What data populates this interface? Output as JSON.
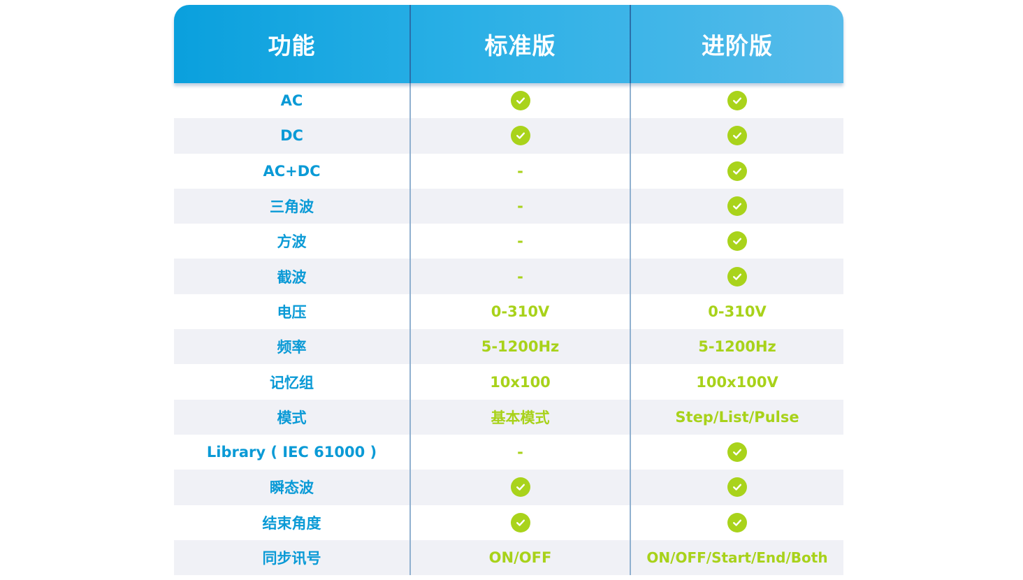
{
  "header": {
    "feature_label": "功能",
    "standard_label": "标准版",
    "advanced_label": "进阶版"
  },
  "rows": [
    {
      "feature": "AC",
      "standard": "check-icon",
      "advanced": "check-icon"
    },
    {
      "feature": "DC",
      "standard": "check-icon",
      "advanced": "check-icon"
    },
    {
      "feature": "AC+DC",
      "standard": "-",
      "advanced": "check-icon"
    },
    {
      "feature": "三角波",
      "standard": "-",
      "advanced": "check-icon"
    },
    {
      "feature": "方波",
      "standard": "-",
      "advanced": "check-icon"
    },
    {
      "feature": "截波",
      "standard": "-",
      "advanced": "check-icon"
    },
    {
      "feature": "电压",
      "standard": "0-310V",
      "advanced": "0-310V"
    },
    {
      "feature": "频率",
      "standard": "5-1200Hz",
      "advanced": "5-1200Hz"
    },
    {
      "feature": "记忆组",
      "standard": "10x100",
      "advanced": "100x100V"
    },
    {
      "feature": "模式",
      "standard": "基本模式",
      "advanced": "Step/List/Pulse"
    },
    {
      "feature": "Library ( IEC 61000 )",
      "standard": "-",
      "advanced": "check-icon"
    },
    {
      "feature": "瞬态波",
      "standard": "check-icon",
      "advanced": "check-icon"
    },
    {
      "feature": "结束角度",
      "standard": "check-icon",
      "advanced": "check-icon"
    },
    {
      "feature": "同步讯号",
      "standard": "ON/OFF",
      "advanced": "ON/OFF/Start/End/Both"
    }
  ],
  "colors": {
    "header_start": "#0aa0dd",
    "header_end": "#56bbea",
    "feature_text": "#0a9ad6",
    "value_text": "#a8d21a",
    "check": "#a9d31b",
    "alt_row": "#f0f1f6"
  }
}
